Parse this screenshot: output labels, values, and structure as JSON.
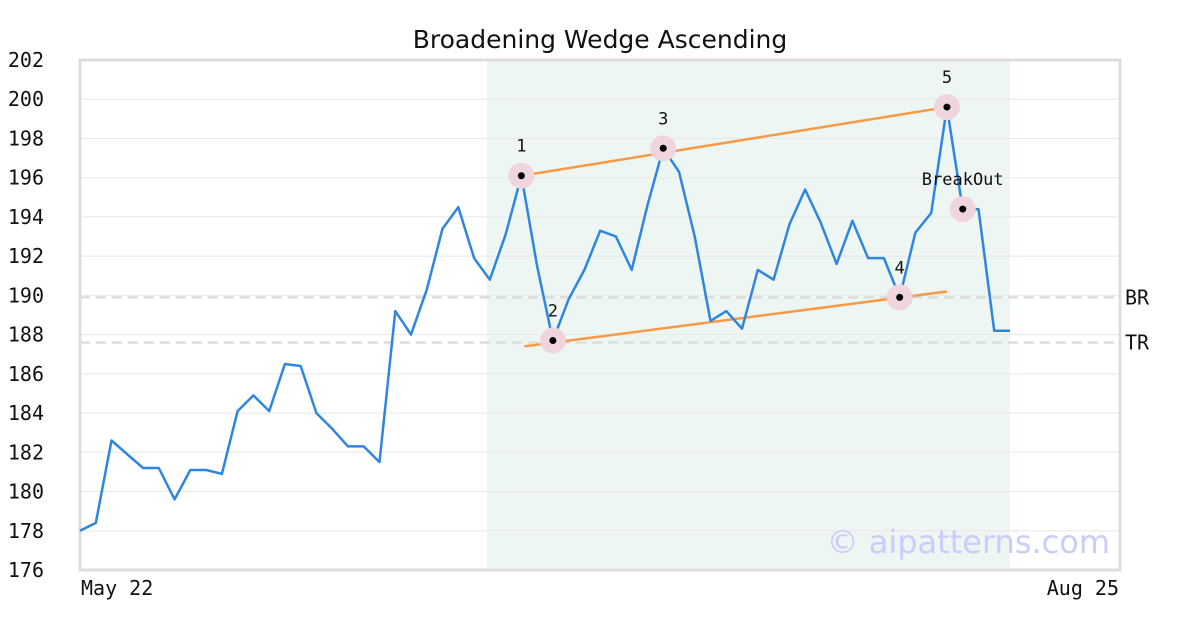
{
  "chart_data": {
    "type": "line",
    "title": "Broadening Wedge Ascending",
    "xlabel": "",
    "ylabel": "",
    "ylim": [
      176,
      202
    ],
    "yticks": [
      176,
      178,
      180,
      182,
      184,
      186,
      188,
      190,
      192,
      194,
      196,
      198,
      200,
      202
    ],
    "x_tick_labels": [
      "May 22",
      "Aug 25"
    ],
    "grid": "horizontal",
    "series": [
      {
        "color": "#2e86e0",
        "values": [
          178.0,
          178.4,
          182.6,
          181.9,
          181.2,
          181.2,
          179.6,
          181.1,
          181.1,
          180.9,
          184.1,
          184.9,
          184.1,
          186.5,
          186.4,
          184.0,
          183.2,
          182.3,
          182.3,
          181.5,
          189.2,
          188.0,
          190.3,
          193.4,
          194.5,
          191.9,
          190.8,
          193.1,
          196.1,
          191.5,
          187.7,
          189.8,
          191.3,
          193.3,
          193.0,
          191.3,
          194.6,
          197.5,
          196.3,
          193.0,
          188.7,
          189.2,
          188.3,
          191.3,
          190.8,
          193.6,
          195.4,
          193.7,
          191.6,
          193.8,
          191.9,
          191.9,
          189.9,
          193.2,
          194.2,
          199.6,
          194.4,
          194.4,
          188.2,
          188.2
        ]
      }
    ],
    "pattern_shading": {
      "start_index": 26,
      "end_index": 59,
      "color": "#eef6f3"
    },
    "trendlines": [
      {
        "color": "#f59a45",
        "from": {
          "index": 28,
          "value": 196.1
        },
        "to": {
          "index": 55,
          "value": 199.6
        }
      },
      {
        "color": "#f59a45",
        "from": {
          "index": 28,
          "value": 187.4
        },
        "to": {
          "index": 55,
          "value": 190.2
        }
      }
    ],
    "pivots": [
      {
        "label": "1",
        "index": 28,
        "value": 196.1
      },
      {
        "label": "2",
        "index": 30,
        "value": 187.7
      },
      {
        "label": "3",
        "index": 37,
        "value": 197.5
      },
      {
        "label": "4",
        "index": 52,
        "value": 189.9
      },
      {
        "label": "5",
        "index": 55,
        "value": 199.6
      },
      {
        "label": "BreakOut",
        "index": 56,
        "value": 194.4
      }
    ],
    "levels": [
      {
        "label": "BR",
        "value": 189.9
      },
      {
        "label": "TR",
        "value": 187.6
      }
    ],
    "watermark": "© aipatterns.com",
    "colors": {
      "price_line": "#2e86e0",
      "trendline": "#f59a45",
      "level_line": "#dddddd",
      "pivot_halo": "#f0d5dd",
      "pivot_dot": "#000000",
      "grid": "#e8e8e8",
      "frame": "#dddddd"
    }
  }
}
